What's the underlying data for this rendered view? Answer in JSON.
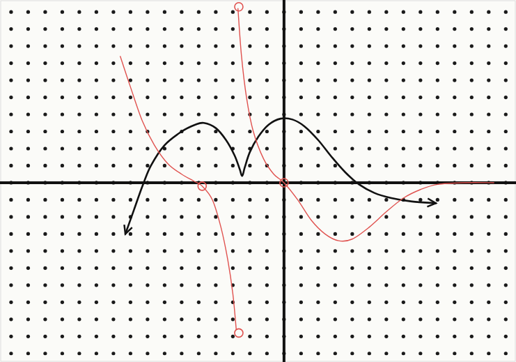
{
  "chart_data": {
    "type": "line",
    "xlim": [
      -16.65,
      13.6
    ],
    "ylim": [
      -10.5,
      10.7
    ],
    "xticks": [
      -16,
      -15,
      -14,
      -13,
      -12,
      -11,
      -10,
      -9,
      -8,
      -7,
      -6,
      -5,
      -4,
      -3,
      -2,
      -1,
      0,
      1,
      2,
      3,
      4,
      5,
      6,
      7,
      8,
      9,
      10,
      11,
      12,
      13
    ],
    "yticks": [
      -10,
      -9,
      -8,
      -7,
      -6,
      -5,
      -4,
      -3,
      -2,
      -1,
      0,
      1,
      2,
      3,
      4,
      5,
      6,
      7,
      8,
      9,
      10
    ],
    "grid": true,
    "tick_labels": false,
    "series": [
      {
        "color": "#111111",
        "type": "line",
        "line_style": "solid",
        "marker": "arrow",
        "x": [
          -9.3,
          -8.8,
          -8.3,
          -7.8,
          -7.0,
          -6.0,
          -5.2,
          -4.7,
          -4.0,
          -3.4,
          -2.9,
          -2.6,
          -2.45,
          -2.3,
          -2.0,
          -1.5,
          -0.9,
          -0.2,
          0.5,
          1.2,
          2.0,
          2.8,
          3.6,
          4.4,
          5.3,
          6.3,
          7.5,
          8.9
        ],
        "values": [
          -3.0,
          -1.6,
          -0.2,
          1.0,
          2.2,
          3.0,
          3.4,
          3.5,
          3.2,
          2.5,
          1.6,
          0.8,
          0.4,
          0.9,
          1.8,
          2.7,
          3.4,
          3.75,
          3.7,
          3.3,
          2.5,
          1.5,
          0.6,
          -0.1,
          -0.6,
          -0.9,
          -1.1,
          -1.2
        ]
      },
      {
        "color": "#e0524f",
        "type": "line",
        "line_style": "solid",
        "marker": "none",
        "x": [
          -9.6,
          -9.0,
          -8.3,
          -7.6,
          -6.8,
          -6.0,
          -5.3,
          -4.8,
          -4.2,
          -3.7,
          -3.3,
          -3.0,
          -2.8,
          -2.75,
          -2.7,
          -2.5,
          -2.2,
          -1.8,
          -1.2,
          -0.6,
          0,
          0.8,
          1.6,
          2.4,
          3.2,
          4.0,
          5.0,
          6.0,
          7.0,
          8.0,
          9.0,
          10.5,
          12.3
        ],
        "values": [
          7.4,
          5.6,
          3.6,
          2.2,
          1.1,
          0.5,
          0.1,
          -0.2,
          -1.0,
          -2.6,
          -4.5,
          -6.5,
          -8.6,
          null,
          10.2,
          7.5,
          5.0,
          3.0,
          1.4,
          0.5,
          0,
          -1.0,
          -2.2,
          -3.0,
          -3.4,
          -3.3,
          -2.6,
          -1.7,
          -0.9,
          -0.4,
          -0.1,
          0,
          0
        ]
      },
      {
        "color": "#e0524f",
        "type": "scatter",
        "marker": "open-circle",
        "x": [
          -4.8,
          0,
          -2.65,
          -2.65
        ],
        "values": [
          -0.2,
          0,
          10.3,
          -8.8
        ]
      }
    ]
  }
}
